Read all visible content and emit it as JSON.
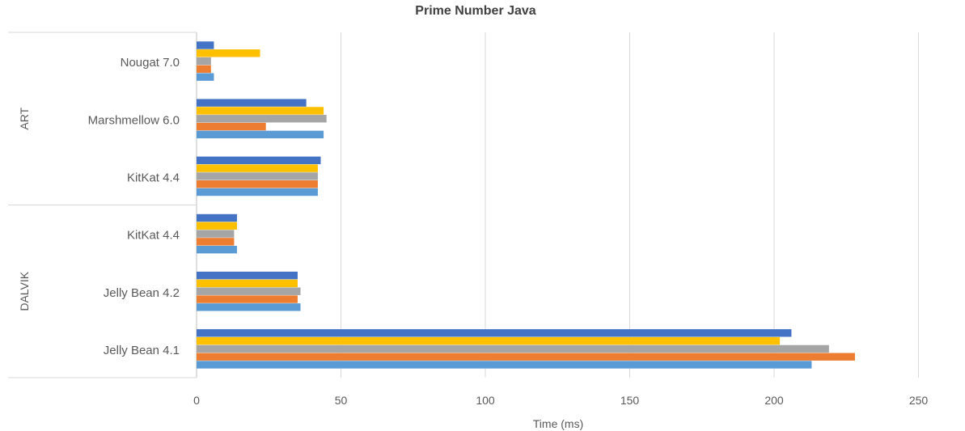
{
  "chart_data": {
    "type": "bar",
    "orientation": "horizontal",
    "title": "Prime Number Java",
    "xlabel": "Time (ms)",
    "ylabel": "",
    "xlim": [
      0,
      250
    ],
    "xticks": [
      "0",
      "50",
      "100",
      "150",
      "200",
      "250"
    ],
    "grid": true,
    "legend": "none",
    "groups": [
      {
        "label": "ART",
        "categories": [
          "Nougat 7.0",
          "Marshmellow 6.0",
          "KitKat 4.4"
        ]
      },
      {
        "label": "DALVIK",
        "categories": [
          "KitKat 4.4",
          "Jelly Bean 4.2",
          "Jelly Bean 4.1"
        ]
      }
    ],
    "categories": [
      "Nougat 7.0",
      "Marshmellow 6.0",
      "KitKat 4.4",
      "KitKat 4.4",
      "Jelly Bean 4.2",
      "Jelly Bean 4.1"
    ],
    "series": [
      {
        "color": "#4472C4",
        "values": [
          6,
          38,
          43,
          14,
          35,
          206
        ]
      },
      {
        "color": "#FFC000",
        "values": [
          22,
          44,
          42,
          14,
          35,
          202
        ]
      },
      {
        "color": "#A5A5A5",
        "values": [
          5,
          45,
          42,
          13,
          36,
          219
        ]
      },
      {
        "color": "#ED7D31",
        "values": [
          5,
          24,
          42,
          13,
          35,
          228
        ]
      },
      {
        "color": "#5B9BD5",
        "values": [
          6,
          44,
          42,
          14,
          36,
          213
        ]
      }
    ]
  }
}
